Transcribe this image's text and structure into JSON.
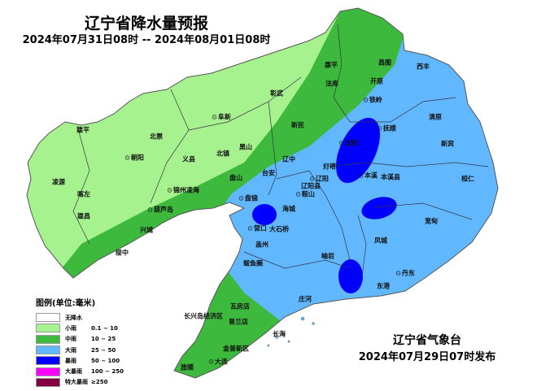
{
  "title": "辽宁省降水量预报",
  "period": "2024年07月31日08时 -- 2024年08月01日08时",
  "issuer": "辽宁省气象台",
  "issued": "2024年07月29日07时发布",
  "colors": {
    "none": "#ffffff",
    "light": "#a6f28f",
    "moderate": "#3dba3d",
    "heavy": "#61b8ff",
    "rainstorm": "#0000fe",
    "heavy_rainstorm": "#fa00fa",
    "extreme": "#800040"
  },
  "legend": {
    "title": "图例(单位:毫米)",
    "items": [
      {
        "name": "无降水",
        "range": ""
      },
      {
        "name": "小雨",
        "range": "0.1 ~ 10"
      },
      {
        "name": "中雨",
        "range": "10 ~ 25"
      },
      {
        "name": "大雨",
        "range": "25 ~ 50"
      },
      {
        "name": "暴雨",
        "range": "50 ~ 100"
      },
      {
        "name": "大暴雨",
        "range": "100 ~ 250"
      },
      {
        "name": "特大暴雨",
        "range": "≥250"
      }
    ]
  },
  "places": [
    {
      "name": "彰武",
      "capital": false
    },
    {
      "name": "阜新",
      "capital": true
    },
    {
      "name": "建平",
      "capital": false
    },
    {
      "name": "北票",
      "capital": false
    },
    {
      "name": "朝阳",
      "capital": true
    },
    {
      "name": "义县",
      "capital": false
    },
    {
      "name": "北镇",
      "capital": false
    },
    {
      "name": "黑山",
      "capital": false
    },
    {
      "name": "凌源",
      "capital": false
    },
    {
      "name": "喀左",
      "capital": false
    },
    {
      "name": "建昌",
      "capital": false
    },
    {
      "name": "锦州凌海",
      "capital": true
    },
    {
      "name": "盘山",
      "capital": false
    },
    {
      "name": "台安",
      "capital": false
    },
    {
      "name": "辽中",
      "capital": false
    },
    {
      "name": "新民",
      "capital": false
    },
    {
      "name": "法库",
      "capital": false
    },
    {
      "name": "康平",
      "capital": false
    },
    {
      "name": "昌图",
      "capital": false
    },
    {
      "name": "开原",
      "capital": false
    },
    {
      "name": "铁岭",
      "capital": true
    },
    {
      "name": "西丰",
      "capital": false
    },
    {
      "name": "清原",
      "capital": false
    },
    {
      "name": "抚顺",
      "capital": true
    },
    {
      "name": "沈阳",
      "capital": true
    },
    {
      "name": "新宾",
      "capital": false
    },
    {
      "name": "灯塔",
      "capital": false
    },
    {
      "name": "本溪",
      "capital": true
    },
    {
      "name": "本溪县",
      "capital": false
    },
    {
      "name": "桓仁",
      "capital": false
    },
    {
      "name": "辽阳",
      "capital": true
    },
    {
      "name": "辽阳县",
      "capital": false
    },
    {
      "name": "鞍山",
      "capital": true
    },
    {
      "name": "海城",
      "capital": false
    },
    {
      "name": "盘锦",
      "capital": true
    },
    {
      "name": "葫芦岛",
      "capital": true
    },
    {
      "name": "兴城",
      "capital": false
    },
    {
      "name": "绥中",
      "capital": false
    },
    {
      "name": "营口",
      "capital": true
    },
    {
      "name": "大石桥",
      "capital": false
    },
    {
      "name": "宽甸",
      "capital": false
    },
    {
      "name": "盖州",
      "capital": false
    },
    {
      "name": "凤城",
      "capital": false
    },
    {
      "name": "岫岩",
      "capital": false
    },
    {
      "name": "鲅鱼圈",
      "capital": false
    },
    {
      "name": "丹东",
      "capital": true
    },
    {
      "name": "东港",
      "capital": false
    },
    {
      "name": "庄河",
      "capital": false
    },
    {
      "name": "瓦房店",
      "capital": false
    },
    {
      "name": "长兴岛经济区",
      "capital": false
    },
    {
      "name": "普兰店",
      "capital": false
    },
    {
      "name": "长海",
      "capital": false
    },
    {
      "name": "金普新区",
      "capital": false
    },
    {
      "name": "大连",
      "capital": true
    },
    {
      "name": "旅顺",
      "capital": false
    }
  ]
}
